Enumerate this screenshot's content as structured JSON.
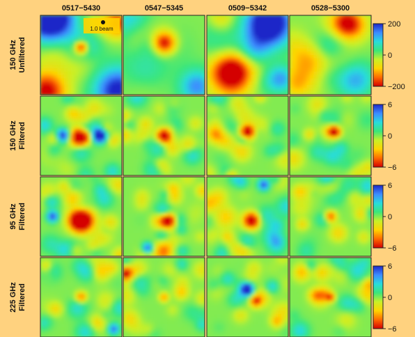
{
  "chart_data": {
    "type": "heatmap",
    "columns": [
      "0517−5430",
      "0547−5345",
      "0509−5342",
      "0528−5300"
    ],
    "rows": [
      {
        "label_line1": "150 GHz",
        "label_line2": "Unfiltered",
        "colorbar_ticks": [
          "200",
          "0",
          "−200"
        ],
        "vmin": -200,
        "vmax": 200
      },
      {
        "label_line1": "150 GHz",
        "label_line2": "Filtered",
        "colorbar_ticks": [
          "6",
          "0",
          "−6"
        ],
        "vmin": -6,
        "vmax": 6
      },
      {
        "label_line1": "95 GHz",
        "label_line2": "Filtered",
        "colorbar_ticks": [
          "6",
          "0",
          "−6"
        ],
        "vmin": -6,
        "vmax": 6
      },
      {
        "label_line1": "225 GHz",
        "label_line2": "Filtered",
        "colorbar_ticks": [
          "6",
          "0",
          "−6"
        ],
        "vmin": -6,
        "vmax": 6
      }
    ],
    "scale_bar_label": "1.0 beam",
    "colormap": [
      "#d40000",
      "#ff6a00",
      "#ffd400",
      "#c8f028",
      "#3ce67a",
      "#28dcdc",
      "#3c8cff",
      "#1e28c8"
    ],
    "features": [
      [
        {
          "type": "blob",
          "u": 0.5,
          "v": 0.4,
          "r": 0.06,
          "amp": -2.2
        },
        {
          "type": "blob",
          "u": 0.1,
          "v": 0.05,
          "r": 0.22,
          "amp": 2.4
        },
        {
          "type": "blob",
          "u": 0.95,
          "v": 0.95,
          "r": 0.2,
          "amp": 2.2
        },
        {
          "type": "blob",
          "u": 0.05,
          "v": 0.95,
          "r": 0.16,
          "amp": -1.8
        },
        {
          "type": "blob",
          "u": 0.95,
          "v": 0.1,
          "r": 0.12,
          "amp": -1.6
        }
      ],
      [
        {
          "type": "blob",
          "u": 0.5,
          "v": 0.35,
          "r": 0.1,
          "amp": -2.3
        },
        {
          "type": "blob",
          "u": 0.1,
          "v": 0.1,
          "r": 0.18,
          "amp": 1.4
        },
        {
          "type": "blob",
          "u": 0.9,
          "v": 0.9,
          "r": 0.14,
          "amp": 1.2
        }
      ],
      [
        {
          "type": "blob",
          "u": 0.75,
          "v": 0.1,
          "r": 0.2,
          "amp": 3.0
        },
        {
          "type": "blob",
          "u": 0.3,
          "v": 0.7,
          "r": 0.16,
          "amp": -2.3
        },
        {
          "type": "blob",
          "u": 0.9,
          "v": 0.8,
          "r": 0.12,
          "amp": 1.3
        }
      ],
      [
        {
          "type": "blob",
          "u": 0.3,
          "v": 0.6,
          "r": 0.22,
          "amp": -1.4
        },
        {
          "type": "blob",
          "u": 0.7,
          "v": 0.1,
          "r": 0.12,
          "amp": -1.1
        },
        {
          "type": "blob",
          "u": 0.8,
          "v": 0.8,
          "r": 0.16,
          "amp": 1.3
        }
      ],
      [
        {
          "type": "blob",
          "u": 0.5,
          "v": 0.5,
          "r": 0.08,
          "amp": -3.0
        },
        {
          "type": "blob",
          "u": 0.27,
          "v": 0.5,
          "r": 0.06,
          "amp": 2.4
        },
        {
          "type": "blob",
          "u": 0.73,
          "v": 0.5,
          "r": 0.06,
          "amp": 2.4
        }
      ],
      [
        {
          "type": "blob",
          "u": 0.5,
          "v": 0.5,
          "r": 0.06,
          "amp": -2.6
        }
      ],
      [
        {
          "type": "blob",
          "u": 0.5,
          "v": 0.45,
          "r": 0.06,
          "amp": -2.6
        }
      ],
      [
        {
          "type": "blob",
          "u": 0.55,
          "v": 0.45,
          "r": 0.05,
          "amp": -2.4
        }
      ],
      [
        {
          "type": "blob",
          "u": 0.5,
          "v": 0.55,
          "r": 0.1,
          "amp": -3.2
        },
        {
          "type": "blob",
          "u": 0.15,
          "v": 0.5,
          "r": 0.05,
          "amp": 1.8
        }
      ],
      [
        {
          "type": "blob",
          "u": 0.55,
          "v": 0.55,
          "r": 0.06,
          "amp": -2.6
        },
        {
          "type": "blob",
          "u": 0.3,
          "v": 0.9,
          "r": 0.05,
          "amp": 2.0
        }
      ],
      [
        {
          "type": "blob",
          "u": 0.55,
          "v": 0.55,
          "r": 0.07,
          "amp": -2.6
        },
        {
          "type": "blob",
          "u": 0.7,
          "v": 0.1,
          "r": 0.05,
          "amp": 1.8
        }
      ],
      [
        {
          "type": "blob",
          "u": 0.5,
          "v": 0.5,
          "r": 0.05,
          "amp": -1.6
        }
      ],
      [
        {
          "type": "blob",
          "u": 0.5,
          "v": 0.5,
          "r": 0.05,
          "amp": -1.4
        },
        {
          "type": "blob",
          "u": 0.9,
          "v": 0.9,
          "r": 0.05,
          "amp": 1.6
        }
      ],
      [
        {
          "type": "blob",
          "u": 0.5,
          "v": 0.5,
          "r": 0.04,
          "amp": -1.2
        }
      ],
      [
        {
          "type": "blob",
          "u": 0.5,
          "v": 0.4,
          "r": 0.05,
          "amp": 2.0
        },
        {
          "type": "blob",
          "u": 0.6,
          "v": 0.55,
          "r": 0.05,
          "amp": -1.4
        }
      ],
      [
        {
          "type": "blob",
          "u": 0.5,
          "v": 0.5,
          "r": 0.04,
          "amp": -1.4
        }
      ]
    ]
  }
}
